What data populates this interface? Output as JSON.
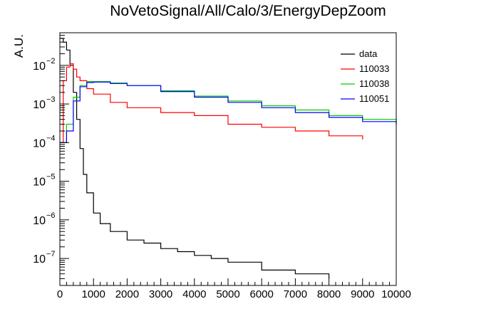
{
  "chart_data": {
    "type": "line",
    "title": "NoVetoSignal/All/Calo/3/EnergyDepZoom",
    "xlabel": "",
    "ylabel": "A.U.",
    "xlim": [
      0,
      10000
    ],
    "ylim": [
      2e-08,
      0.07
    ],
    "yscale": "log",
    "grid": false,
    "legend_position": "top-right",
    "x_ticks": [
      "0",
      "1000",
      "2000",
      "3000",
      "4000",
      "5000",
      "6000",
      "7000",
      "8000",
      "9000",
      "10000"
    ],
    "y_ticks": [
      {
        "base": "10",
        "exp": "−2",
        "value": 0.01
      },
      {
        "base": "10",
        "exp": "−3",
        "value": 0.001
      },
      {
        "base": "10",
        "exp": "−4",
        "value": 0.0001
      },
      {
        "base": "10",
        "exp": "−5",
        "value": 1e-05
      },
      {
        "base": "10",
        "exp": "−6",
        "value": 1e-06
      },
      {
        "base": "10",
        "exp": "−7",
        "value": 1e-07
      }
    ],
    "series": [
      {
        "name": "data",
        "color": "#000000",
        "x": [
          0,
          100,
          200,
          300,
          400,
          500,
          600,
          700,
          800,
          1000,
          1200,
          1500,
          2000,
          2500,
          3000,
          3500,
          4000,
          4500,
          5000,
          6000,
          7000,
          8000
        ],
        "y": [
          0.05,
          0.04,
          0.025,
          0.01,
          0.002,
          0.0004,
          7e-05,
          1.5e-05,
          5e-06,
          1.5e-06,
          8e-07,
          5e-07,
          3e-07,
          2.5e-07,
          1.8e-07,
          1.5e-07,
          1.2e-07,
          1e-07,
          8e-08,
          5e-08,
          4e-08,
          3e-08
        ]
      },
      {
        "name": "110033",
        "color": "#ff0000",
        "x": [
          0,
          100,
          200,
          300,
          400,
          500,
          600,
          800,
          1000,
          1500,
          2000,
          3000,
          4000,
          5000,
          6000,
          7000,
          8000,
          9000
        ],
        "y": [
          0.0001,
          0.004,
          0.009,
          0.011,
          0.008,
          0.005,
          0.004,
          0.0025,
          0.0018,
          0.0011,
          0.0008,
          0.0006,
          0.0005,
          0.0003,
          0.00025,
          0.0002,
          0.00015,
          0.00012
        ]
      },
      {
        "name": "110038",
        "color": "#00cc00",
        "x": [
          0,
          200,
          400,
          600,
          800,
          1000,
          1500,
          2000,
          3000,
          4000,
          5000,
          6000,
          7000,
          8000,
          9000,
          10000
        ],
        "y": [
          0.0001,
          0.0003,
          0.0015,
          0.003,
          0.0038,
          0.0038,
          0.0035,
          0.003,
          0.0022,
          0.0016,
          0.0012,
          0.0009,
          0.0007,
          0.0005,
          0.0004,
          0.0003
        ]
      },
      {
        "name": "110051",
        "color": "#0000ff",
        "x": [
          0,
          200,
          400,
          600,
          800,
          1000,
          1500,
          2000,
          3000,
          4000,
          5000,
          6000,
          7000,
          8000,
          9000,
          10000
        ],
        "y": [
          0.0001,
          0.0002,
          0.0012,
          0.0028,
          0.0036,
          0.0037,
          0.0034,
          0.003,
          0.0021,
          0.0015,
          0.0011,
          0.0008,
          0.0006,
          0.00045,
          0.00035,
          0.0003
        ]
      }
    ]
  }
}
